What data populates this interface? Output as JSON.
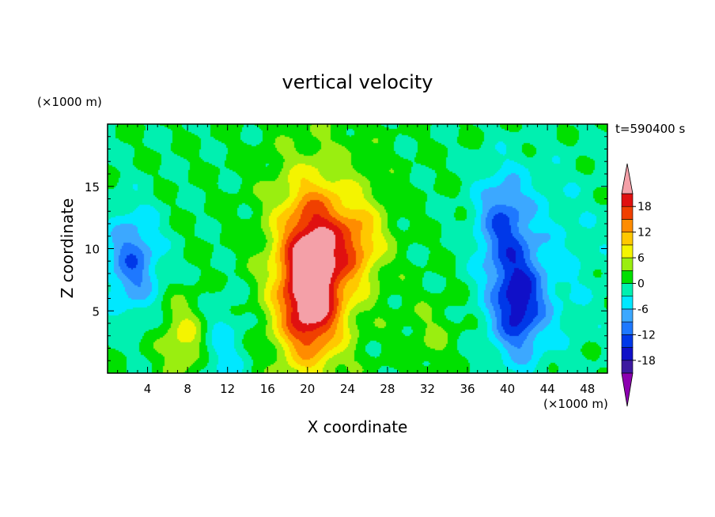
{
  "chart_data": {
    "type": "heatmap",
    "title": "vertical velocity",
    "xlabel": "X coordinate",
    "ylabel": "Z coordinate",
    "x_unit": "(×1000 m)",
    "y_unit": "(×1000 m)",
    "time_label": "t=590400 s",
    "xlim": [
      0,
      50
    ],
    "ylim": [
      0,
      20
    ],
    "x_ticks": [
      4,
      8,
      12,
      16,
      20,
      24,
      28,
      32,
      36,
      40,
      44,
      48
    ],
    "y_ticks": [
      5,
      10,
      15
    ],
    "colorbar": {
      "levels": [
        -21,
        -18,
        -15,
        -12,
        -9,
        -6,
        -3,
        0,
        3,
        6,
        9,
        12,
        15,
        18,
        21
      ],
      "tick_labels": [
        "18",
        "12",
        "6",
        "0",
        "-6",
        "-12",
        "-18"
      ],
      "tick_values": [
        18,
        12,
        6,
        0,
        -6,
        -12,
        -18
      ],
      "colors": [
        "#7a00a8",
        "#3d1aa0",
        "#1010c8",
        "#0038e8",
        "#1e78ff",
        "#3ca8ff",
        "#00e8ff",
        "#00f0b0",
        "#00e000",
        "#9aee10",
        "#f4f400",
        "#ffc800",
        "#ff8c00",
        "#f04000",
        "#e01010",
        "#f4a0a8"
      ],
      "over_color": "#f4a0a8",
      "under_color": "#8c00b0"
    },
    "field_features": [
      {
        "kind": "updraft",
        "x": 20.2,
        "z": 5.5,
        "peak": 19
      },
      {
        "kind": "updraft",
        "x": 20.5,
        "z": 10.5,
        "peak": 13
      },
      {
        "kind": "updraft",
        "x": 25.0,
        "z": 10.5,
        "peak": 9
      },
      {
        "kind": "updraft",
        "x": 8.0,
        "z": 2.7,
        "peak": 8
      },
      {
        "kind": "updraft",
        "x": 32.5,
        "z": 3.0,
        "peak": 3
      },
      {
        "kind": "downdraft",
        "x": 41.0,
        "z": 5.5,
        "peak": -15
      },
      {
        "kind": "downdraft",
        "x": 39.5,
        "z": 12.0,
        "peak": -10
      },
      {
        "kind": "downdraft",
        "x": 2.5,
        "z": 9.0,
        "peak": -11
      },
      {
        "kind": "downdraft",
        "x": 11.0,
        "z": 2.0,
        "peak": -6
      }
    ]
  }
}
